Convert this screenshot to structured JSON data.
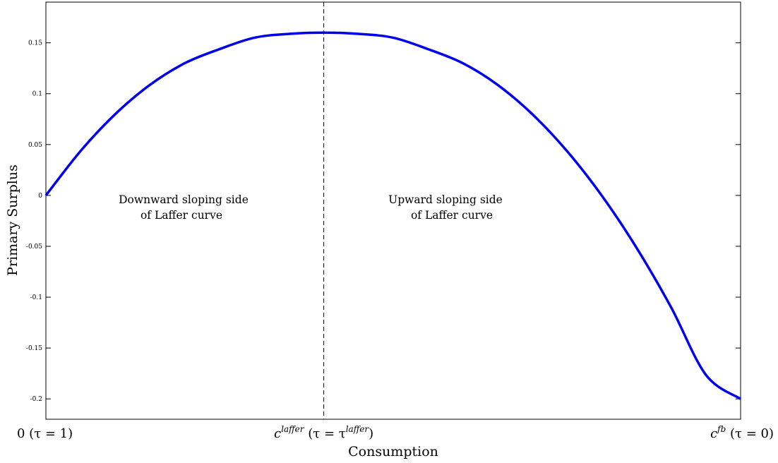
{
  "chart_data": {
    "type": "line",
    "title": "",
    "xlabel": "Consumption",
    "ylabel": "Primary Surplus",
    "ylim": [
      -0.22,
      0.19
    ],
    "xlim": [
      0,
      1
    ],
    "yticks": [
      -0.2,
      -0.15,
      -0.1,
      -0.05,
      0,
      0.05,
      0.1,
      0.15
    ],
    "ytick_labels": [
      "-0.2",
      "-0.15",
      "-0.1",
      "-0.05",
      "0",
      "0.05",
      "0.1",
      "0.15"
    ],
    "x_categories": [
      {
        "x": 0,
        "base": "0",
        "sup": "",
        "rest": " (τ = 1)"
      },
      {
        "x": 0.4,
        "base": "c",
        "sup": "laffer",
        "rest": " (τ = τ",
        "sup2": "laffer",
        "rest2": ")"
      },
      {
        "x": 1,
        "base": "c",
        "sup": "fb",
        "rest": " (τ = 0)"
      }
    ],
    "series": [
      {
        "color": "#0000ee",
        "x": [
          0,
          0.05,
          0.1,
          0.15,
          0.2,
          0.25,
          0.3,
          0.35,
          0.4,
          0.45,
          0.5,
          0.55,
          0.6,
          0.65,
          0.7,
          0.75,
          0.8,
          0.85,
          0.9,
          0.95,
          1.0
        ],
        "y": [
          0,
          0.0437,
          0.08,
          0.1088,
          0.13,
          0.1438,
          0.155,
          0.1588,
          0.16,
          0.1588,
          0.155,
          0.1438,
          0.13,
          0.1088,
          0.08,
          0.0437,
          0.0,
          -0.0512,
          -0.11,
          -0.1763,
          -0.2
        ]
      }
    ],
    "vline": {
      "x": 0.4,
      "style": "dashed",
      "color": "#000000"
    },
    "annotations": [
      {
        "lines": [
          "Downward sloping side",
          "of Laffer curve"
        ]
      },
      {
        "lines": [
          "Upward sloping side",
          "of Laffer curve"
        ]
      }
    ],
    "grid": false
  }
}
